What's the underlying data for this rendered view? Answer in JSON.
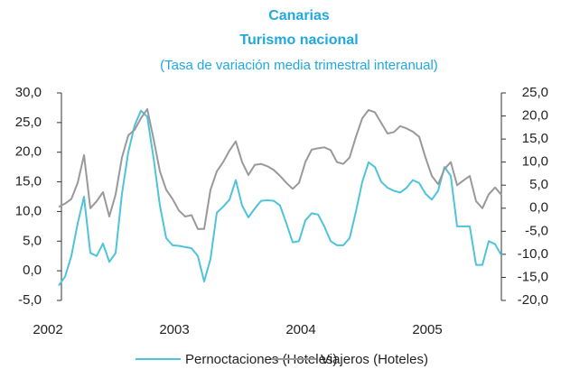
{
  "chart_data": {
    "type": "line",
    "title": "Canarias",
    "subtitle": "Turismo nacional",
    "annotation": "(Tasa de variación media trimestral interanual)",
    "x": [
      2002.2,
      2002.25,
      2002.3,
      2002.35,
      2002.4,
      2002.45,
      2002.5,
      2002.55,
      2002.6,
      2002.65,
      2002.7,
      2002.75,
      2002.8,
      2002.85,
      2002.9,
      2002.95,
      2003.0,
      2003.05,
      2003.1,
      2003.15,
      2003.2,
      2003.25,
      2003.3,
      2003.35,
      2003.4,
      2003.45,
      2003.5,
      2003.55,
      2003.6,
      2003.65,
      2003.7,
      2003.75,
      2003.8,
      2003.85,
      2003.9,
      2003.95,
      2004.0,
      2004.05,
      2004.1,
      2004.15,
      2004.2,
      2004.25,
      2004.3,
      2004.35,
      2004.4,
      2004.45,
      2004.5,
      2004.55,
      2004.6,
      2004.65,
      2004.7,
      2004.75,
      2004.8,
      2004.85,
      2004.9,
      2004.95,
      2005.0,
      2005.05,
      2005.1,
      2005.15,
      2005.2,
      2005.25,
      2005.3,
      2005.35,
      2005.4,
      2005.45,
      2005.5,
      2005.55,
      2005.6,
      2005.65,
      2005.7
    ],
    "series": [
      {
        "name": "Pernoctaciones (Hoteles)",
        "color": "#4fc3d9",
        "axis": "y",
        "values": [
          -2.5,
          -1,
          2.5,
          8,
          12.5,
          3,
          2.5,
          4.6,
          1.5,
          3,
          13,
          20,
          24.5,
          27,
          26,
          19,
          11,
          5.5,
          4.3,
          4.2,
          4,
          3.8,
          2.5,
          -1.8,
          2,
          9.8,
          10.8,
          12,
          15.3,
          11,
          9,
          10.5,
          11.8,
          11.9,
          11.8,
          11,
          8,
          4.8,
          5,
          8.5,
          9.7,
          9.5,
          7.5,
          5,
          4.3,
          4.3,
          5.5,
          10,
          15,
          18.3,
          17.5,
          15,
          14,
          13.5,
          13.2,
          14,
          15.3,
          14.8,
          13,
          12,
          13.5,
          17.5,
          16,
          7.5,
          7.5,
          7.5,
          1,
          1,
          5,
          4.5,
          2.6
        ]
      },
      {
        "name": "Viajeros (Hoteles)",
        "color": "#999999",
        "axis": "y2",
        "values": [
          0.3,
          1,
          2,
          5.5,
          11.5,
          0,
          1.5,
          3.5,
          -1.8,
          3,
          11,
          15.8,
          17,
          19.5,
          21.5,
          15,
          8,
          4,
          2,
          -0.5,
          -1.8,
          -1.5,
          -4.5,
          -4.5,
          4,
          8,
          10,
          12.5,
          14.5,
          10,
          7.2,
          9.4,
          9.6,
          9.1,
          8.3,
          7,
          5.5,
          4.2,
          5.5,
          10,
          12.7,
          13,
          13.2,
          12.6,
          10,
          9.6,
          11,
          15.5,
          19.5,
          21.3,
          20.8,
          18.5,
          16.2,
          16.5,
          17.8,
          17.3,
          16.6,
          15.5,
          11,
          7,
          5.2,
          8.5,
          10,
          5,
          6,
          7,
          1.5,
          0,
          3,
          4.5,
          2.9
        ]
      }
    ],
    "xlim": [
      2002,
      2005.7
    ],
    "xticks": [
      2002,
      2003,
      2004,
      2005
    ],
    "ylim": [
      -5,
      30
    ],
    "yticks": [
      {
        "value": -5,
        "label": "-5,0"
      },
      {
        "value": 0,
        "label": "0,0"
      },
      {
        "value": 5,
        "label": "5,0"
      },
      {
        "value": 10,
        "label": "10,0"
      },
      {
        "value": 15,
        "label": "15,0"
      },
      {
        "value": 20,
        "label": "20,0"
      },
      {
        "value": 25,
        "label": "25,0"
      },
      {
        "value": 30,
        "label": "30,0"
      }
    ],
    "y2lim": [
      -20,
      25
    ],
    "y2ticks": [
      {
        "value": -20,
        "label": "-20,0"
      },
      {
        "value": -15,
        "label": "-15,0"
      },
      {
        "value": -10,
        "label": "-10,0"
      },
      {
        "value": -5,
        "label": "-5,0"
      },
      {
        "value": 0,
        "label": "0,0"
      },
      {
        "value": 5,
        "label": "5,0"
      },
      {
        "value": 10,
        "label": "10,0"
      },
      {
        "value": 15,
        "label": "15,0"
      },
      {
        "value": 20,
        "label": "20,0"
      },
      {
        "value": 25,
        "label": "25,0"
      }
    ],
    "grid": false,
    "legend": "bottom"
  }
}
